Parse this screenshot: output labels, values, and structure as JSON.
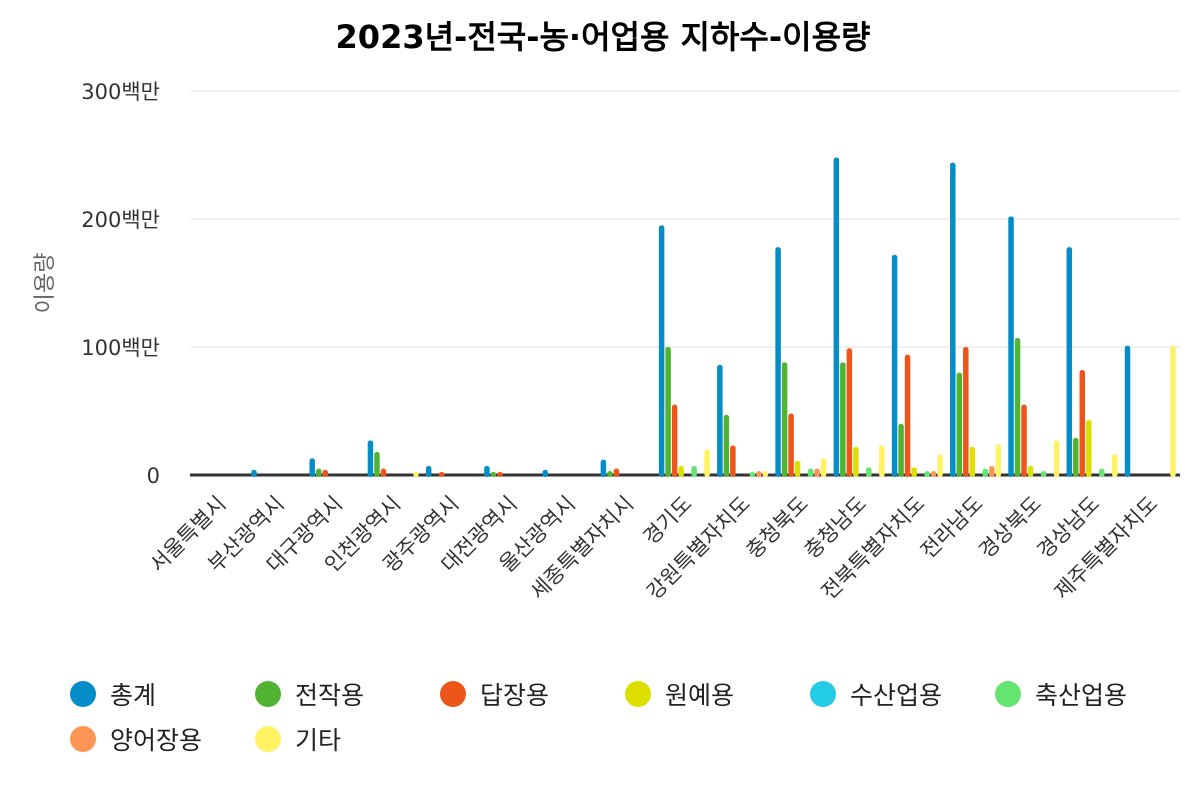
{
  "chart_data": {
    "type": "bar",
    "title": "2023년-전국-농·어업용 지하수-이용량",
    "ylabel": "이용량",
    "xlabel": "",
    "ylim": [
      0,
      300
    ],
    "unit": "백만",
    "yticks": [
      {
        "value": 0,
        "label": "0"
      },
      {
        "value": 100,
        "label": "100백만"
      },
      {
        "value": 200,
        "label": "200백만"
      },
      {
        "value": 300,
        "label": "300백만"
      }
    ],
    "grid": true,
    "legend_position": "bottom-left",
    "categories": [
      "서울특별시",
      "부산광역시",
      "대구광역시",
      "인천광역시",
      "광주광역시",
      "대전광역시",
      "울산광역시",
      "세종특별자치시",
      "경기도",
      "강원특별자치도",
      "충청북도",
      "충청남도",
      "전북특별자치도",
      "전라남도",
      "경상북도",
      "경상남도",
      "제주특별자치도"
    ],
    "series": [
      {
        "name": "총계",
        "color": "#058DC7",
        "values": [
          0,
          4,
          13,
          27,
          7,
          7,
          4,
          12,
          195,
          86,
          178,
          248,
          172,
          244,
          202,
          178,
          101
        ]
      },
      {
        "name": "전작용",
        "color": "#50B432",
        "values": [
          0,
          0,
          5,
          18,
          0,
          2,
          0,
          3,
          100,
          47,
          88,
          88,
          40,
          80,
          107,
          29,
          0
        ]
      },
      {
        "name": "답장용",
        "color": "#ED561B",
        "values": [
          0,
          0,
          4,
          5,
          1,
          2,
          0,
          5,
          55,
          23,
          48,
          99,
          94,
          100,
          55,
          82,
          0
        ]
      },
      {
        "name": "원예용",
        "color": "#DDDF00",
        "values": [
          0,
          0,
          0,
          0,
          0,
          0,
          0,
          0,
          7,
          0,
          11,
          22,
          6,
          22,
          7,
          43,
          0
        ]
      },
      {
        "name": "수산업용",
        "color": "#24CBE5",
        "values": [
          0,
          0,
          0,
          0,
          0,
          0,
          0,
          0,
          0,
          0,
          0,
          0,
          0,
          0,
          0,
          0,
          0
        ]
      },
      {
        "name": "축산업용",
        "color": "#64E572",
        "values": [
          0,
          0,
          0,
          0,
          0,
          0,
          0,
          0,
          7,
          1,
          5,
          6,
          3,
          5,
          3,
          5,
          0
        ]
      },
      {
        "name": "양어장용",
        "color": "#FF9655",
        "values": [
          0,
          0,
          0,
          0,
          0,
          0,
          0,
          0,
          0,
          3,
          5,
          0,
          3,
          7,
          0,
          0,
          0
        ]
      },
      {
        "name": "기타",
        "color": "#FFF263",
        "values": [
          0,
          0,
          0,
          1,
          0,
          0,
          0,
          0,
          20,
          3,
          13,
          23,
          16,
          24,
          27,
          16,
          101
        ]
      }
    ]
  }
}
